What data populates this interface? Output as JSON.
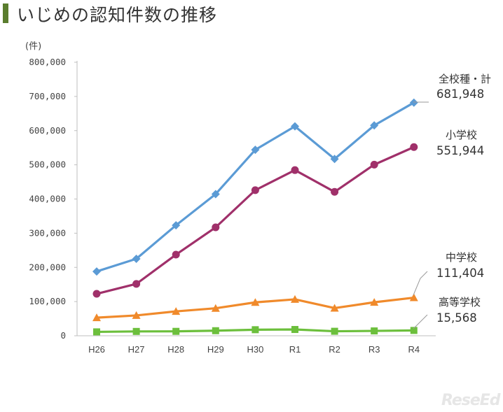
{
  "title": "いじめの認知件数の推移",
  "logo_text": "ReseEd",
  "chart_data": {
    "type": "line",
    "unit_label": "(件)",
    "categories": [
      "H26",
      "H27",
      "H28",
      "H29",
      "H30",
      "R1",
      "R2",
      "R3",
      "R4"
    ],
    "ylim": [
      0,
      800000
    ],
    "yticks": [
      "0",
      "100,000",
      "200,000",
      "300,000",
      "400,000",
      "500,000",
      "600,000",
      "700,000",
      "800,000"
    ],
    "grid": false,
    "series": [
      {
        "name": "全校種・計",
        "end_label": "681,948",
        "color": "#5b9bd5",
        "marker": "diamond",
        "values": [
          188072,
          225132,
          323143,
          414378,
          543933,
          612496,
          517163,
          615351,
          681948
        ]
      },
      {
        "name": "小学校",
        "end_label": "551,944",
        "color": "#a0306a",
        "marker": "circle",
        "values": [
          122734,
          151692,
          237256,
          317121,
          425844,
          484545,
          420897,
          500562,
          551944
        ]
      },
      {
        "name": "中学校",
        "end_label": "111,404",
        "color": "#f08a2b",
        "marker": "triangle",
        "values": [
          52971,
          59502,
          71309,
          80424,
          97704,
          106524,
          80877,
          97937,
          111404
        ]
      },
      {
        "name": "高等学校",
        "end_label": "15,568",
        "color": "#6cbf3c",
        "marker": "square",
        "values": [
          11404,
          12664,
          12874,
          14789,
          17709,
          18352,
          13126,
          14157,
          15568
        ]
      }
    ]
  }
}
